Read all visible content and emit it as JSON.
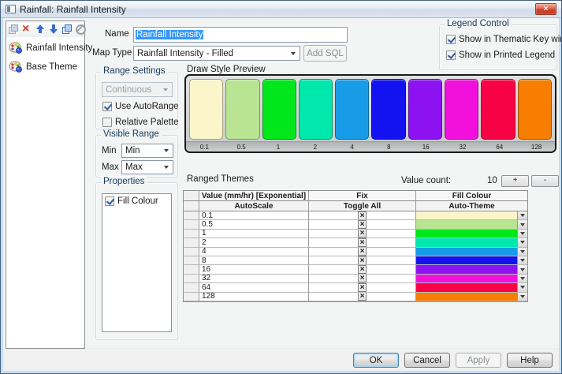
{
  "window": {
    "title": "Rainfall: Rainfall Intensity",
    "close_glyph": "×"
  },
  "sidebar": {
    "toolbar": [
      {
        "id": "duplicate",
        "name": "duplicate-theme-icon",
        "enabled": false
      },
      {
        "id": "delete",
        "name": "delete-theme-icon",
        "enabled": true
      },
      {
        "id": "move-up",
        "name": "move-up-icon",
        "enabled": true
      },
      {
        "id": "move-down",
        "name": "move-down-icon",
        "enabled": true
      },
      {
        "id": "copy",
        "name": "copy-theme-icon",
        "enabled": true
      },
      {
        "id": "disable",
        "name": "disable-theme-icon",
        "enabled": false
      }
    ],
    "items": [
      {
        "label": "Rainfall Intensity",
        "selected": true
      },
      {
        "label": "Base Theme",
        "selected": false
      }
    ]
  },
  "form": {
    "name_label": "Name",
    "name_value": "Rainfall Intensity",
    "map_type_label": "Map Type",
    "map_type_value": "Rainfall Intensity - Filled",
    "add_sql_label": "Add SQL"
  },
  "legend_control": {
    "title": "Legend Control",
    "options": [
      {
        "label": "Show in Thematic Key window",
        "checked": true
      },
      {
        "label": "Show in Printed Legend",
        "checked": true
      }
    ]
  },
  "range_settings": {
    "title": "Range Settings",
    "mode_value": "Continuous",
    "options": [
      {
        "label": "Use AutoRange",
        "checked": true
      },
      {
        "label": "Relative Palette",
        "checked": false
      }
    ]
  },
  "visible_range": {
    "title": "Visible Range",
    "min_label": "Min",
    "min_value": "Min",
    "max_label": "Max",
    "max_value": "Max"
  },
  "preview": {
    "title": "Draw Style Preview",
    "swatches": [
      {
        "color": "#FAF6CA",
        "label": "0.1"
      },
      {
        "color": "#B9E593",
        "label": "0.5"
      },
      {
        "color": "#00E81C",
        "label": "1"
      },
      {
        "color": "#00E8AC",
        "label": "2"
      },
      {
        "color": "#189CE8",
        "label": "4"
      },
      {
        "color": "#1313F2",
        "label": "8"
      },
      {
        "color": "#8C12F2",
        "label": "16"
      },
      {
        "color": "#F211DC",
        "label": "32"
      },
      {
        "color": "#F70345",
        "label": "64"
      },
      {
        "color": "#F77E00",
        "label": "128"
      }
    ]
  },
  "properties": {
    "title": "Properties",
    "options": [
      {
        "label": "Fill Colour",
        "checked": true
      }
    ]
  },
  "ranged_themes": {
    "title": "Ranged Themes",
    "value_count_label": "Value count:",
    "value_count": "10",
    "add_label": "+",
    "remove_label": "-",
    "columns": [
      "Value (mm/hr) [Exponential]",
      "Fix",
      "Fill Colour"
    ],
    "subheaders": [
      "AutoScale",
      "Toggle All",
      "Auto-Theme"
    ],
    "fix_glyph": "×",
    "rows": [
      {
        "value": "0.1",
        "fix": true,
        "color": "#FAF6CA"
      },
      {
        "value": "0.5",
        "fix": true,
        "color": "#B9E593"
      },
      {
        "value": "1",
        "fix": true,
        "color": "#00E81C"
      },
      {
        "value": "2",
        "fix": true,
        "color": "#00E8AC"
      },
      {
        "value": "4",
        "fix": true,
        "color": "#189CE8"
      },
      {
        "value": "8",
        "fix": true,
        "color": "#1313F2"
      },
      {
        "value": "16",
        "fix": true,
        "color": "#8C12F2"
      },
      {
        "value": "32",
        "fix": true,
        "color": "#F211DC"
      },
      {
        "value": "64",
        "fix": true,
        "color": "#F70345"
      },
      {
        "value": "128",
        "fix": true,
        "color": "#F77E00"
      }
    ]
  },
  "footer": {
    "buttons": [
      {
        "label": "OK",
        "style": "default",
        "disabled": false
      },
      {
        "label": "Cancel",
        "style": "normal",
        "disabled": false
      },
      {
        "label": "Apply",
        "style": "normal",
        "disabled": true
      },
      {
        "label": "Help",
        "style": "normal",
        "disabled": false
      }
    ]
  }
}
